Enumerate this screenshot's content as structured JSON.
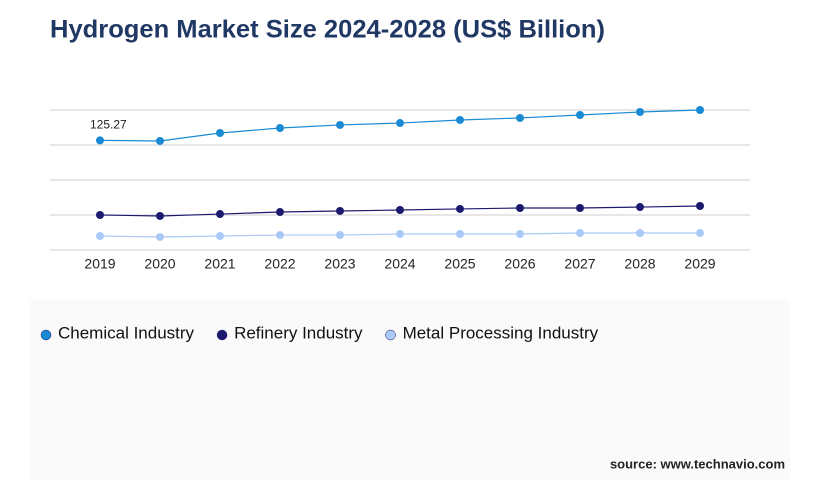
{
  "chart_data": {
    "type": "line",
    "title": "Hydrogen Market Size 2024-2028 (US$ Billion)",
    "source": "source: www.technavio.com",
    "x": [
      "2019",
      "2020",
      "2021",
      "2022",
      "2023",
      "2024",
      "2025",
      "2026",
      "2027",
      "2028",
      "2029"
    ],
    "series": [
      {
        "name": "Chemical Industry",
        "color": "#1a8ad4",
        "values": [
          125.27,
          124.6,
          133.7,
          139.4,
          142.9,
          145.1,
          148.6,
          150.9,
          154.3,
          157.7,
          160
        ],
        "value_labels": [
          "125.27",
          null,
          null,
          null,
          null,
          null,
          null,
          null,
          null,
          null,
          null
        ]
      },
      {
        "name": "Refinery Industry",
        "color": "#1c1a6e",
        "values": [
          40,
          38.9,
          41.1,
          43.4,
          44.6,
          45.7,
          46.9,
          48,
          48,
          49.1,
          50.3
        ]
      },
      {
        "name": "Metal Processing Industry",
        "color": "#a9c9f7",
        "values": [
          16,
          14.9,
          16,
          17.1,
          17.1,
          18.3,
          18.3,
          18.3,
          19.4,
          19.4,
          19.4
        ]
      }
    ],
    "ylim": [
      0,
      160
    ],
    "yticks": [
      0,
      40,
      80,
      120,
      160
    ],
    "grid": true,
    "legend": "bottom"
  }
}
